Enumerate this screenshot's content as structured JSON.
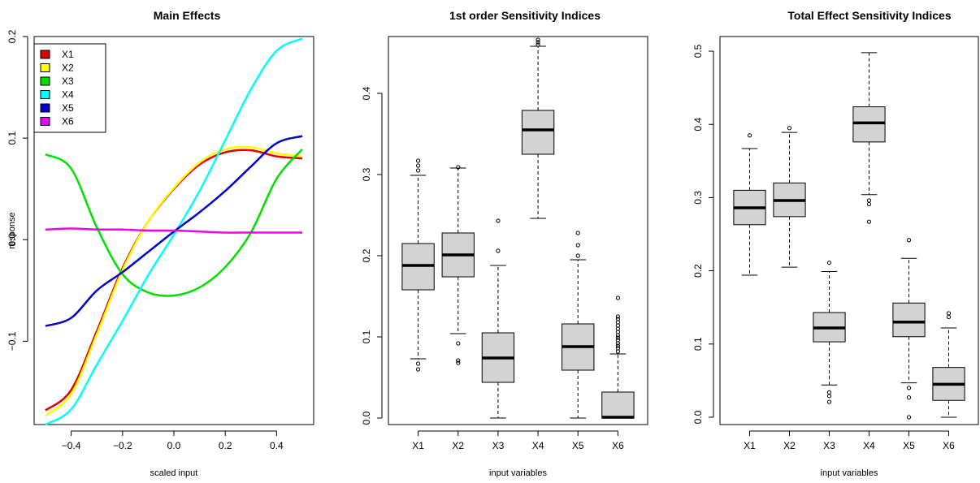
{
  "chart_data": [
    {
      "type": "line",
      "title": "Main Effects",
      "xlabel": "scaled input",
      "ylabel": "response",
      "xlim": [
        -0.5,
        0.5
      ],
      "ylim": [
        -0.182,
        0.2
      ],
      "xticks": [
        -0.4,
        -0.2,
        0.0,
        0.2,
        0.4
      ],
      "xtick_labels": [
        "−0.4",
        "−0.2",
        "0.0",
        "0.2",
        "0.4"
      ],
      "yticks": [
        -0.1,
        0.0,
        0.1,
        0.2
      ],
      "ytick_labels": [
        "−0.1",
        "0.0",
        "0.1",
        "0.2"
      ],
      "legend": "top-left",
      "x": [
        -0.5,
        -0.4,
        -0.3,
        -0.2,
        -0.1,
        0.0,
        0.1,
        0.2,
        0.3,
        0.4,
        0.5
      ],
      "series": [
        {
          "name": "X1",
          "color": "#e00000",
          "values": [
            -0.168,
            -0.148,
            -0.09,
            -0.028,
            0.018,
            0.05,
            0.074,
            0.086,
            0.088,
            0.082,
            0.08
          ]
        },
        {
          "name": "X2",
          "color": "#ffff00",
          "values": [
            -0.173,
            -0.152,
            -0.093,
            -0.03,
            0.018,
            0.051,
            0.076,
            0.089,
            0.091,
            0.085,
            0.082
          ]
        },
        {
          "name": "X3",
          "color": "#00e000",
          "values": [
            0.084,
            0.07,
            0.012,
            -0.034,
            -0.052,
            -0.055,
            -0.047,
            -0.027,
            0.007,
            0.06,
            0.089
          ]
        },
        {
          "name": "X4",
          "color": "#00ffff",
          "values": [
            -0.182,
            -0.167,
            -0.123,
            -0.08,
            -0.035,
            0.005,
            0.048,
            0.098,
            0.148,
            0.186,
            0.198
          ]
        },
        {
          "name": "X5",
          "color": "#0000cc",
          "values": [
            -0.085,
            -0.077,
            -0.05,
            -0.032,
            -0.012,
            0.008,
            0.027,
            0.048,
            0.072,
            0.095,
            0.102
          ]
        },
        {
          "name": "X6",
          "color": "#ee00ee",
          "values": [
            0.01,
            0.011,
            0.01,
            0.01,
            0.009,
            0.009,
            0.008,
            0.007,
            0.007,
            0.007,
            0.007
          ]
        }
      ]
    },
    {
      "type": "box",
      "title": "1st order Sensitivity Indices",
      "xlabel": "input variables",
      "ylabel": "",
      "ylim": [
        -0.008,
        0.47
      ],
      "yticks": [
        0.0,
        0.1,
        0.2,
        0.3,
        0.4
      ],
      "ytick_labels": [
        "0.0",
        "0.1",
        "0.2",
        "0.3",
        "0.4"
      ],
      "categories": [
        "X1",
        "X2",
        "X3",
        "X4",
        "X5",
        "X6"
      ],
      "boxes": [
        {
          "min": 0.073,
          "q1": 0.158,
          "median": 0.188,
          "q3": 0.215,
          "max": 0.299,
          "outliers": [
            0.067,
            0.06,
            0.305,
            0.311,
            0.317
          ]
        },
        {
          "min": 0.104,
          "q1": 0.174,
          "median": 0.201,
          "q3": 0.228,
          "max": 0.308,
          "outliers": [
            0.092,
            0.071,
            0.068,
            0.309
          ]
        },
        {
          "min": 0.0,
          "q1": 0.044,
          "median": 0.074,
          "q3": 0.105,
          "max": 0.188,
          "outliers": [
            0.206,
            0.243
          ]
        },
        {
          "min": 0.246,
          "q1": 0.325,
          "median": 0.355,
          "q3": 0.379,
          "max": 0.458,
          "outliers": [
            0.46,
            0.463,
            0.466
          ]
        },
        {
          "min": 0.0,
          "q1": 0.059,
          "median": 0.088,
          "q3": 0.116,
          "max": 0.195,
          "outliers": [
            0.2,
            0.213,
            0.228
          ]
        },
        {
          "min": 0.0,
          "q1": 0.0,
          "median": 0.001,
          "q3": 0.032,
          "max": 0.079,
          "outliers": [
            0.082,
            0.086,
            0.089,
            0.092,
            0.096,
            0.099,
            0.102,
            0.106,
            0.11,
            0.114,
            0.118,
            0.122,
            0.125,
            0.148
          ]
        }
      ],
      "box_fill": "#d3d3d3"
    },
    {
      "type": "box",
      "title": "Total Effect Sensitivity Indices",
      "xlabel": "input variables",
      "ylabel": "",
      "ylim": [
        -0.01,
        0.52
      ],
      "yticks": [
        0.0,
        0.1,
        0.2,
        0.3,
        0.4,
        0.5
      ],
      "ytick_labels": [
        "0.0",
        "0.1",
        "0.2",
        "0.3",
        "0.4",
        "0.5"
      ],
      "categories": [
        "X1",
        "X2",
        "X3",
        "X4",
        "X5",
        "X6"
      ],
      "boxes": [
        {
          "min": 0.194,
          "q1": 0.263,
          "median": 0.286,
          "q3": 0.31,
          "max": 0.367,
          "outliers": [
            0.385
          ]
        },
        {
          "min": 0.205,
          "q1": 0.274,
          "median": 0.296,
          "q3": 0.32,
          "max": 0.389,
          "outliers": [
            0.395
          ]
        },
        {
          "min": 0.044,
          "q1": 0.103,
          "median": 0.122,
          "q3": 0.143,
          "max": 0.199,
          "outliers": [
            0.021,
            0.029,
            0.034,
            0.211
          ]
        },
        {
          "min": 0.304,
          "q1": 0.376,
          "median": 0.402,
          "q3": 0.424,
          "max": 0.498,
          "outliers": [
            0.267,
            0.291,
            0.296
          ]
        },
        {
          "min": 0.047,
          "q1": 0.11,
          "median": 0.13,
          "q3": 0.156,
          "max": 0.217,
          "outliers": [
            0.0,
            0.027,
            0.04,
            0.242
          ]
        },
        {
          "min": 0.0,
          "q1": 0.023,
          "median": 0.045,
          "q3": 0.068,
          "max": 0.122,
          "outliers": [
            0.137,
            0.142
          ]
        }
      ],
      "box_fill": "#d3d3d3"
    }
  ]
}
